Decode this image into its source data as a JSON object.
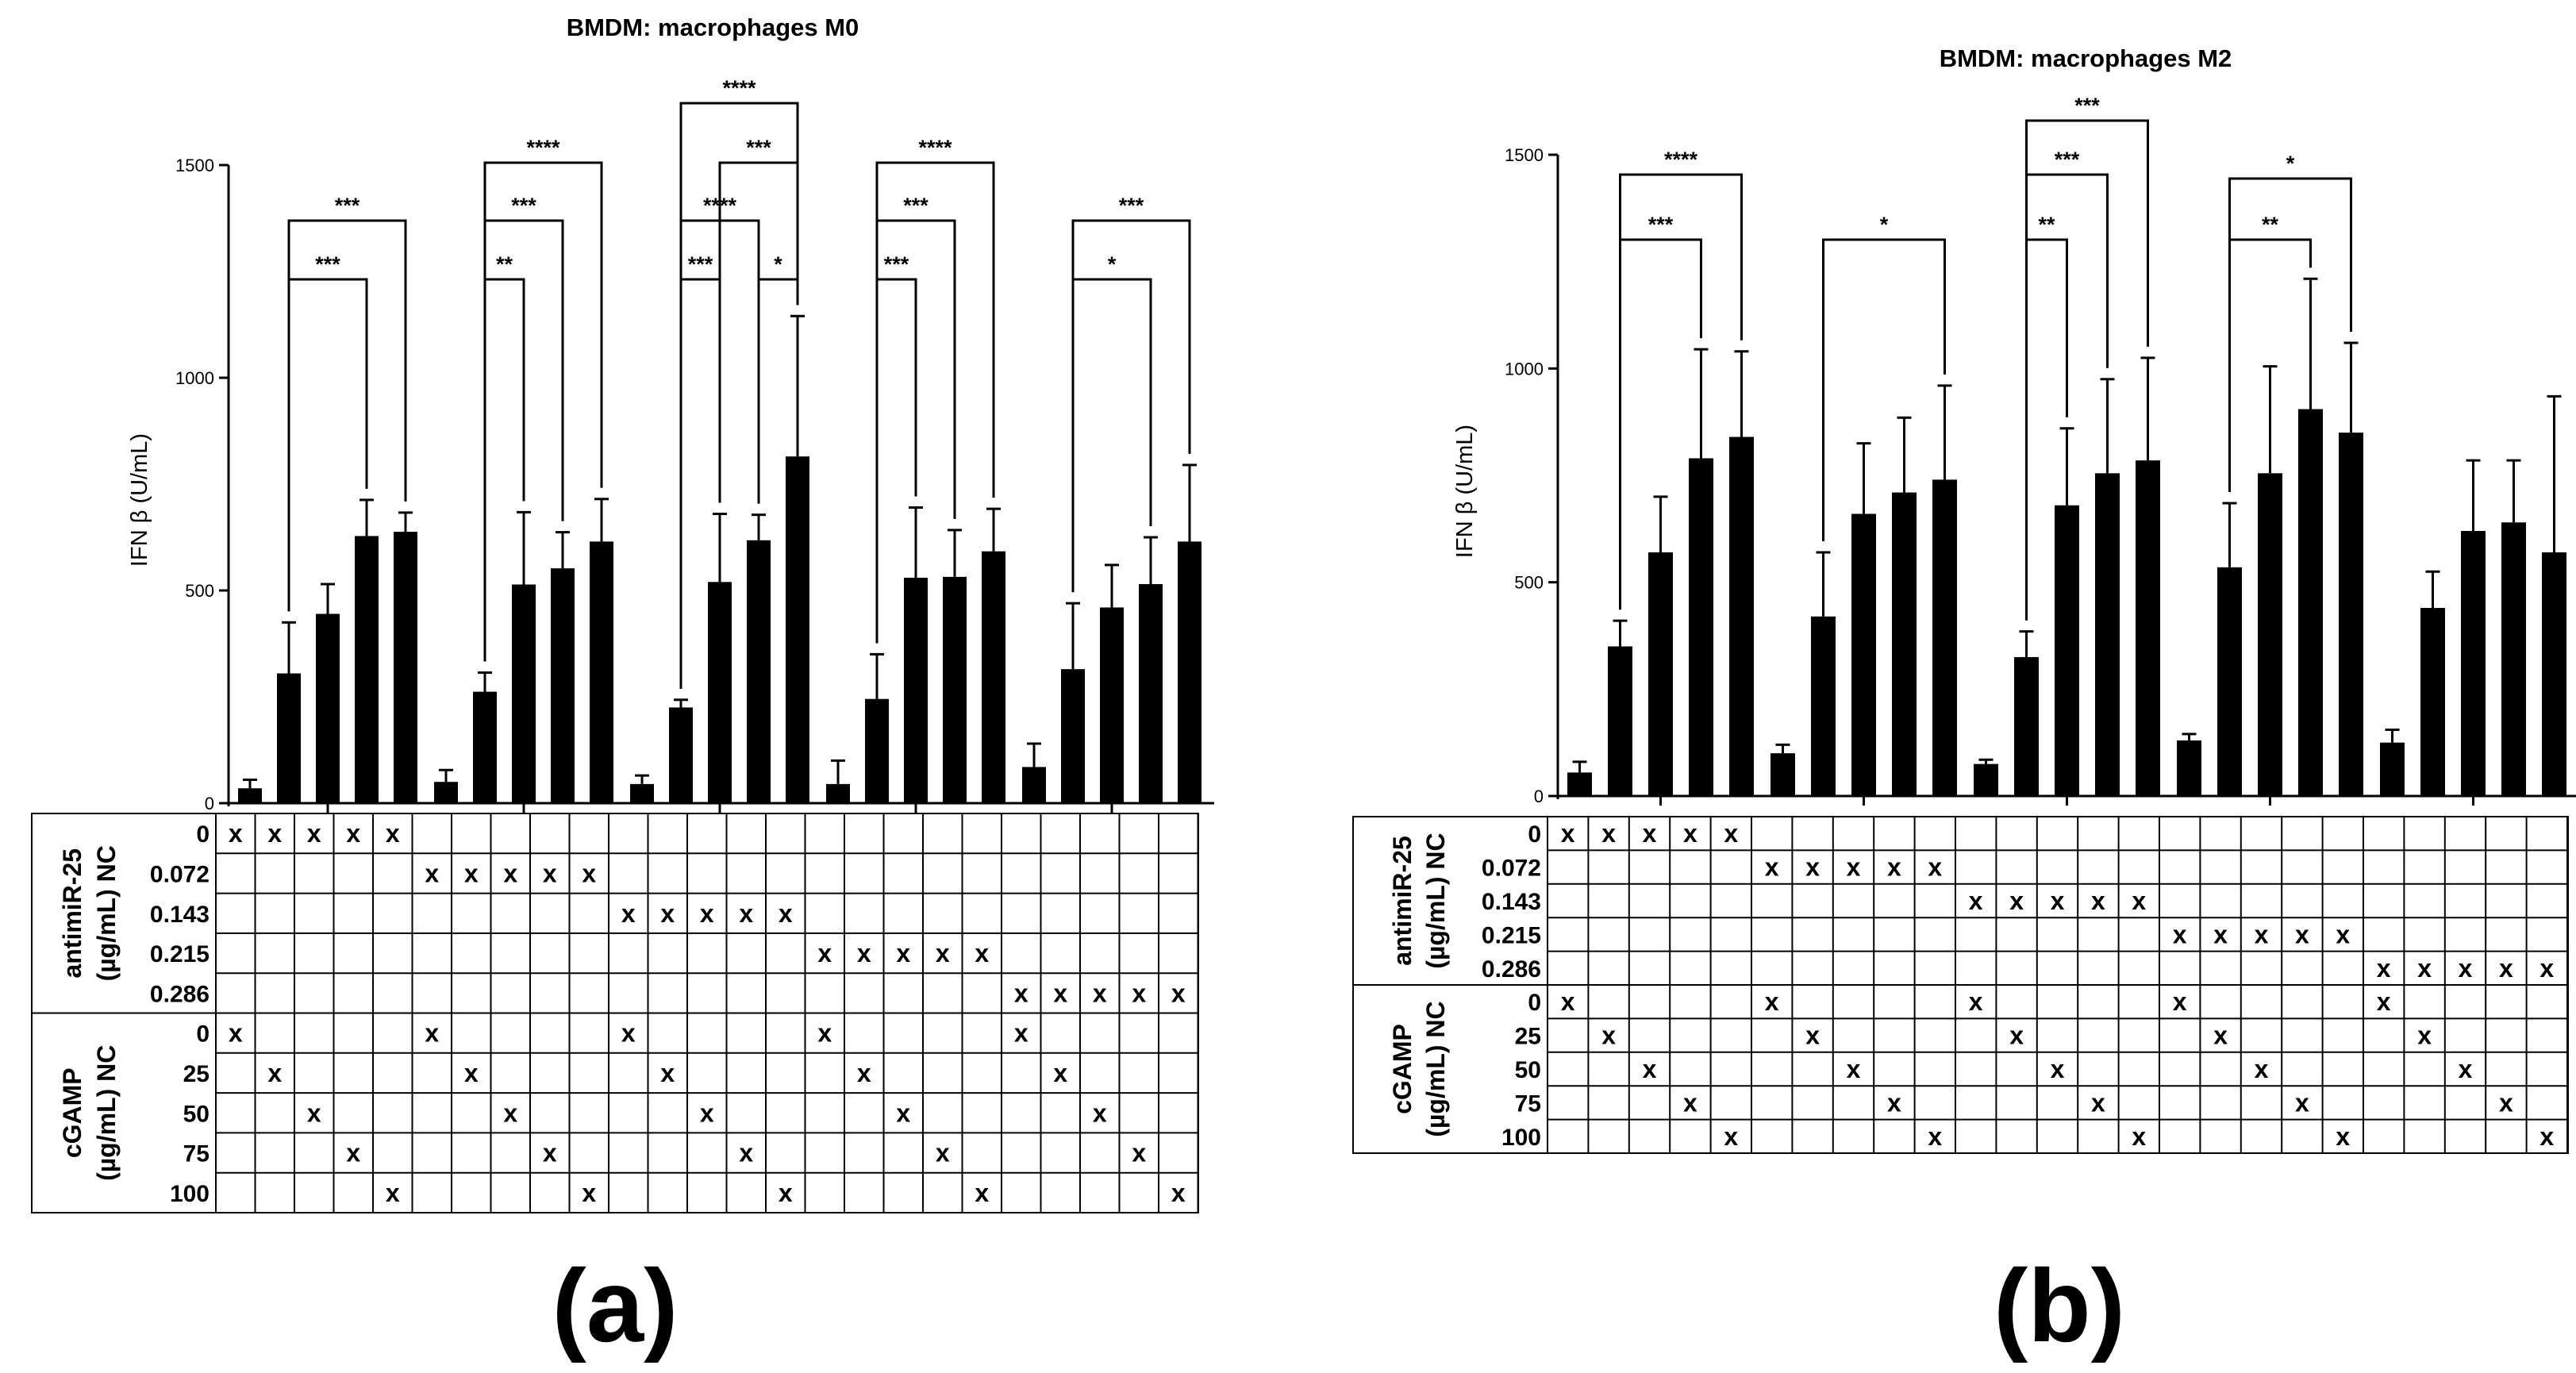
{
  "chart_data": [
    {
      "type": "bar",
      "panel_label": "(a)",
      "title": "BMDM: macrophages M0",
      "ylabel": "IFN β (U/mL)",
      "ylim": [
        0,
        1500
      ],
      "yticks": [
        "0",
        "500",
        "1000",
        "1500"
      ],
      "groups": [
        "antimiR-25 0 µg/mL",
        "antimiR-25 0.072 µg/mL",
        "antimiR-25 0.143 µg/mL",
        "antimiR-25 0.215 µg/mL",
        "antimiR-25 0.286 µg/mL"
      ],
      "bar_series": [
        "cGAMP NC 0",
        "cGAMP 25",
        "cGAMP 50",
        "cGAMP 75",
        "cGAMP 100"
      ],
      "values": [
        [
          35,
          305,
          445,
          628,
          638
        ],
        [
          50,
          262,
          514,
          552,
          615
        ],
        [
          45,
          225,
          520,
          618,
          815
        ],
        [
          45,
          245,
          530,
          532,
          592
        ],
        [
          85,
          315,
          460,
          515,
          615
        ]
      ],
      "errors": [
        [
          20,
          120,
          70,
          85,
          45
        ],
        [
          28,
          45,
          170,
          85,
          100
        ],
        [
          20,
          18,
          160,
          60,
          330
        ],
        [
          55,
          105,
          165,
          110,
          100
        ],
        [
          55,
          155,
          100,
          110,
          180
        ]
      ],
      "significance": [
        {
          "group": 0,
          "from": 1,
          "to": 3,
          "label": "***",
          "level": 1
        },
        {
          "group": 0,
          "from": 1,
          "to": 4,
          "label": "***",
          "level": 2
        },
        {
          "group": 1,
          "from": 1,
          "to": 2,
          "label": "**",
          "level": 1
        },
        {
          "group": 1,
          "from": 1,
          "to": 3,
          "label": "***",
          "level": 2
        },
        {
          "group": 1,
          "from": 1,
          "to": 4,
          "label": "****",
          "level": 3
        },
        {
          "group": 2,
          "from": 1,
          "to": 2,
          "label": "***",
          "level": 1
        },
        {
          "group": 2,
          "from": 3,
          "to": 4,
          "label": "*",
          "level": 1
        },
        {
          "group": 2,
          "from": 1,
          "to": 3,
          "label": "****",
          "level": 2
        },
        {
          "group": 2,
          "from": 2,
          "to": 4,
          "label": "***",
          "level": 3
        },
        {
          "group": 2,
          "from": 1,
          "to": 4,
          "label": "****",
          "level": 4
        },
        {
          "group": 3,
          "from": 1,
          "to": 2,
          "label": "***",
          "level": 1
        },
        {
          "group": 3,
          "from": 1,
          "to": 3,
          "label": "***",
          "level": 2
        },
        {
          "group": 3,
          "from": 1,
          "to": 4,
          "label": "****",
          "level": 3
        },
        {
          "group": 4,
          "from": 1,
          "to": 3,
          "label": "*",
          "level": 1
        },
        {
          "group": 4,
          "from": 1,
          "to": 4,
          "label": "***",
          "level": 2
        }
      ],
      "table": {
        "group_labels": [
          "antimiR-25 (µg/mL) NC",
          "cGAMP (µg/mL) NC"
        ],
        "antimir_rows": [
          "0",
          "0.072",
          "0.143",
          "0.215",
          "0.286"
        ],
        "cgamp_rows": [
          "0",
          "25",
          "50",
          "75",
          "100"
        ],
        "mark": "x"
      }
    },
    {
      "type": "bar",
      "panel_label": "(b)",
      "title": "BMDM: macrophages M2",
      "ylabel": "IFN β (U/mL)",
      "ylim": [
        0,
        1500
      ],
      "yticks": [
        "0",
        "500",
        "1000",
        "1500"
      ],
      "groups": [
        "antimiR-25 0 µg/mL",
        "antimiR-25 0.072 µg/mL",
        "antimiR-25 0.143 µg/mL",
        "antimiR-25 0.215 µg/mL",
        "antimiR-25 0.286 µg/mL"
      ],
      "bar_series": [
        "cGAMP NC 0",
        "cGAMP 25",
        "cGAMP 50",
        "cGAMP 75",
        "cGAMP 100"
      ],
      "values": [
        [
          55,
          350,
          570,
          790,
          840
        ],
        [
          100,
          420,
          660,
          710,
          740
        ],
        [
          75,
          325,
          680,
          755,
          785
        ],
        [
          130,
          535,
          755,
          905,
          850
        ],
        [
          125,
          440,
          620,
          640,
          570
        ]
      ],
      "errors": [
        [
          25,
          60,
          130,
          255,
          200
        ],
        [
          20,
          150,
          165,
          175,
          220
        ],
        [
          10,
          60,
          180,
          220,
          240
        ],
        [
          15,
          150,
          250,
          305,
          210
        ],
        [
          30,
          85,
          165,
          145,
          365
        ]
      ],
      "significance": [
        {
          "group": 0,
          "from": 1,
          "to": 3,
          "label": "***",
          "level": 1
        },
        {
          "group": 0,
          "from": 1,
          "to": 4,
          "label": "****",
          "level": 2
        },
        {
          "group": 1,
          "from": 1,
          "to": 4,
          "label": "*",
          "level": 1
        },
        {
          "group": 2,
          "from": 1,
          "to": 2,
          "label": "**",
          "level": 1
        },
        {
          "group": 2,
          "from": 1,
          "to": 3,
          "label": "***",
          "level": 2
        },
        {
          "group": 2,
          "from": 1,
          "to": 4,
          "label": "***",
          "level": 3
        },
        {
          "group": 3,
          "from": 1,
          "to": 3,
          "label": "**",
          "level": 1
        },
        {
          "group": 3,
          "from": 1,
          "to": 4,
          "label": "*",
          "level": 2
        }
      ],
      "table": {
        "group_labels": [
          "antimiR-25 (µg/mL) NC",
          "cGAMP (µg/mL) NC"
        ],
        "antimir_rows": [
          "0",
          "0.072",
          "0.143",
          "0.215",
          "0.286"
        ],
        "cgamp_rows": [
          "0",
          "25",
          "50",
          "75",
          "100"
        ],
        "mark": "x"
      }
    }
  ]
}
